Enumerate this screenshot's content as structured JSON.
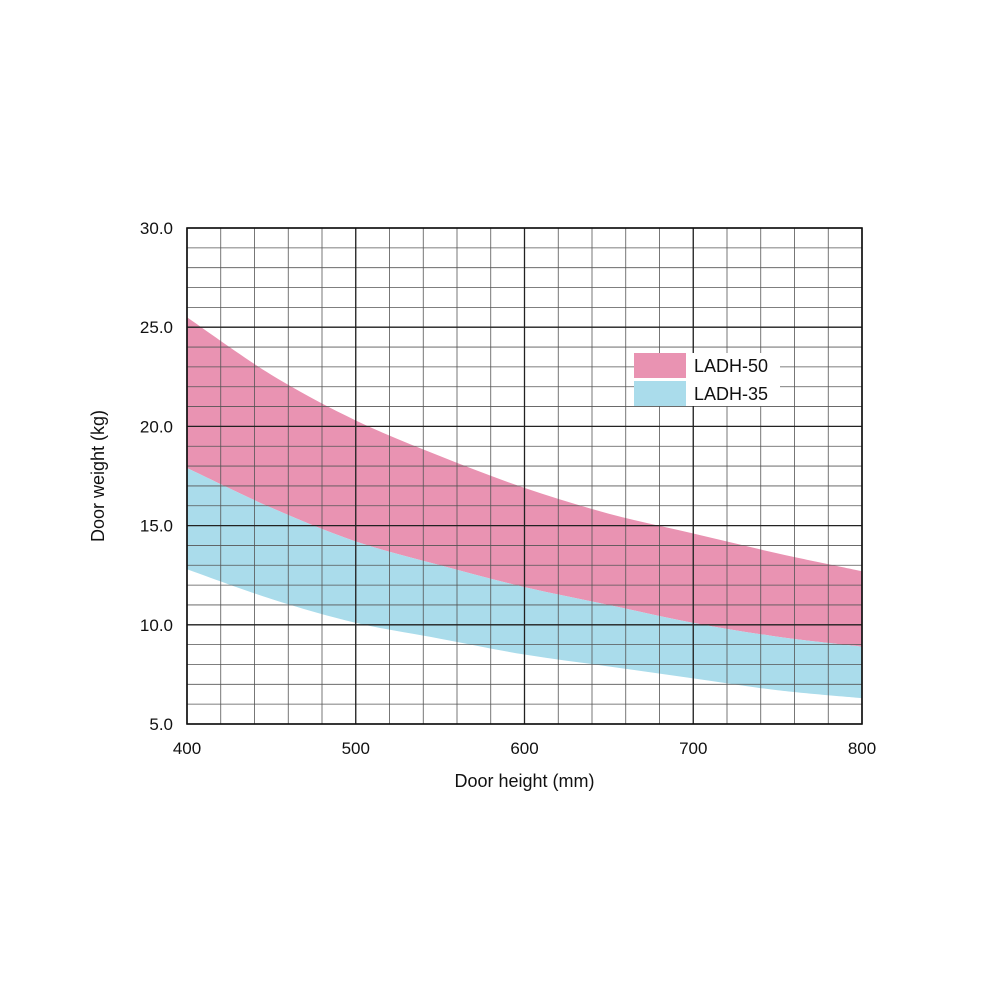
{
  "chart_data": {
    "type": "area",
    "title": "",
    "xlabel": "Door height (mm)",
    "ylabel": "Door weight (kg)",
    "xlim": [
      400,
      800
    ],
    "ylim": [
      5.0,
      30.0
    ],
    "x_ticks": [
      "400",
      "500",
      "600",
      "700",
      "800"
    ],
    "y_ticks": [
      "5.0",
      "10.0",
      "15.0",
      "20.0",
      "25.0",
      "30.0"
    ],
    "x_minor_step": 20,
    "y_minor_step": 1,
    "grid": true,
    "legend_position": "top-right",
    "x": [
      400,
      450,
      500,
      550,
      600,
      650,
      700,
      750,
      800
    ],
    "series": [
      {
        "name": "LADH-50",
        "color": "#e993b2",
        "lower": [
          17.9,
          15.9,
          14.2,
          13.0,
          11.9,
          11.0,
          10.1,
          9.4,
          8.9
        ],
        "upper": [
          25.5,
          22.6,
          20.3,
          18.5,
          16.9,
          15.6,
          14.6,
          13.6,
          12.7
        ]
      },
      {
        "name": "LADH-35",
        "color": "#aadceb",
        "lower": [
          12.8,
          11.3,
          10.1,
          9.3,
          8.5,
          7.9,
          7.3,
          6.7,
          6.3
        ],
        "upper": [
          17.9,
          15.9,
          14.2,
          13.0,
          11.9,
          11.0,
          10.1,
          9.4,
          8.9
        ]
      }
    ],
    "colors": {
      "grid_minor": "#555555",
      "grid_major": "#222222",
      "frame": "#111111"
    }
  }
}
